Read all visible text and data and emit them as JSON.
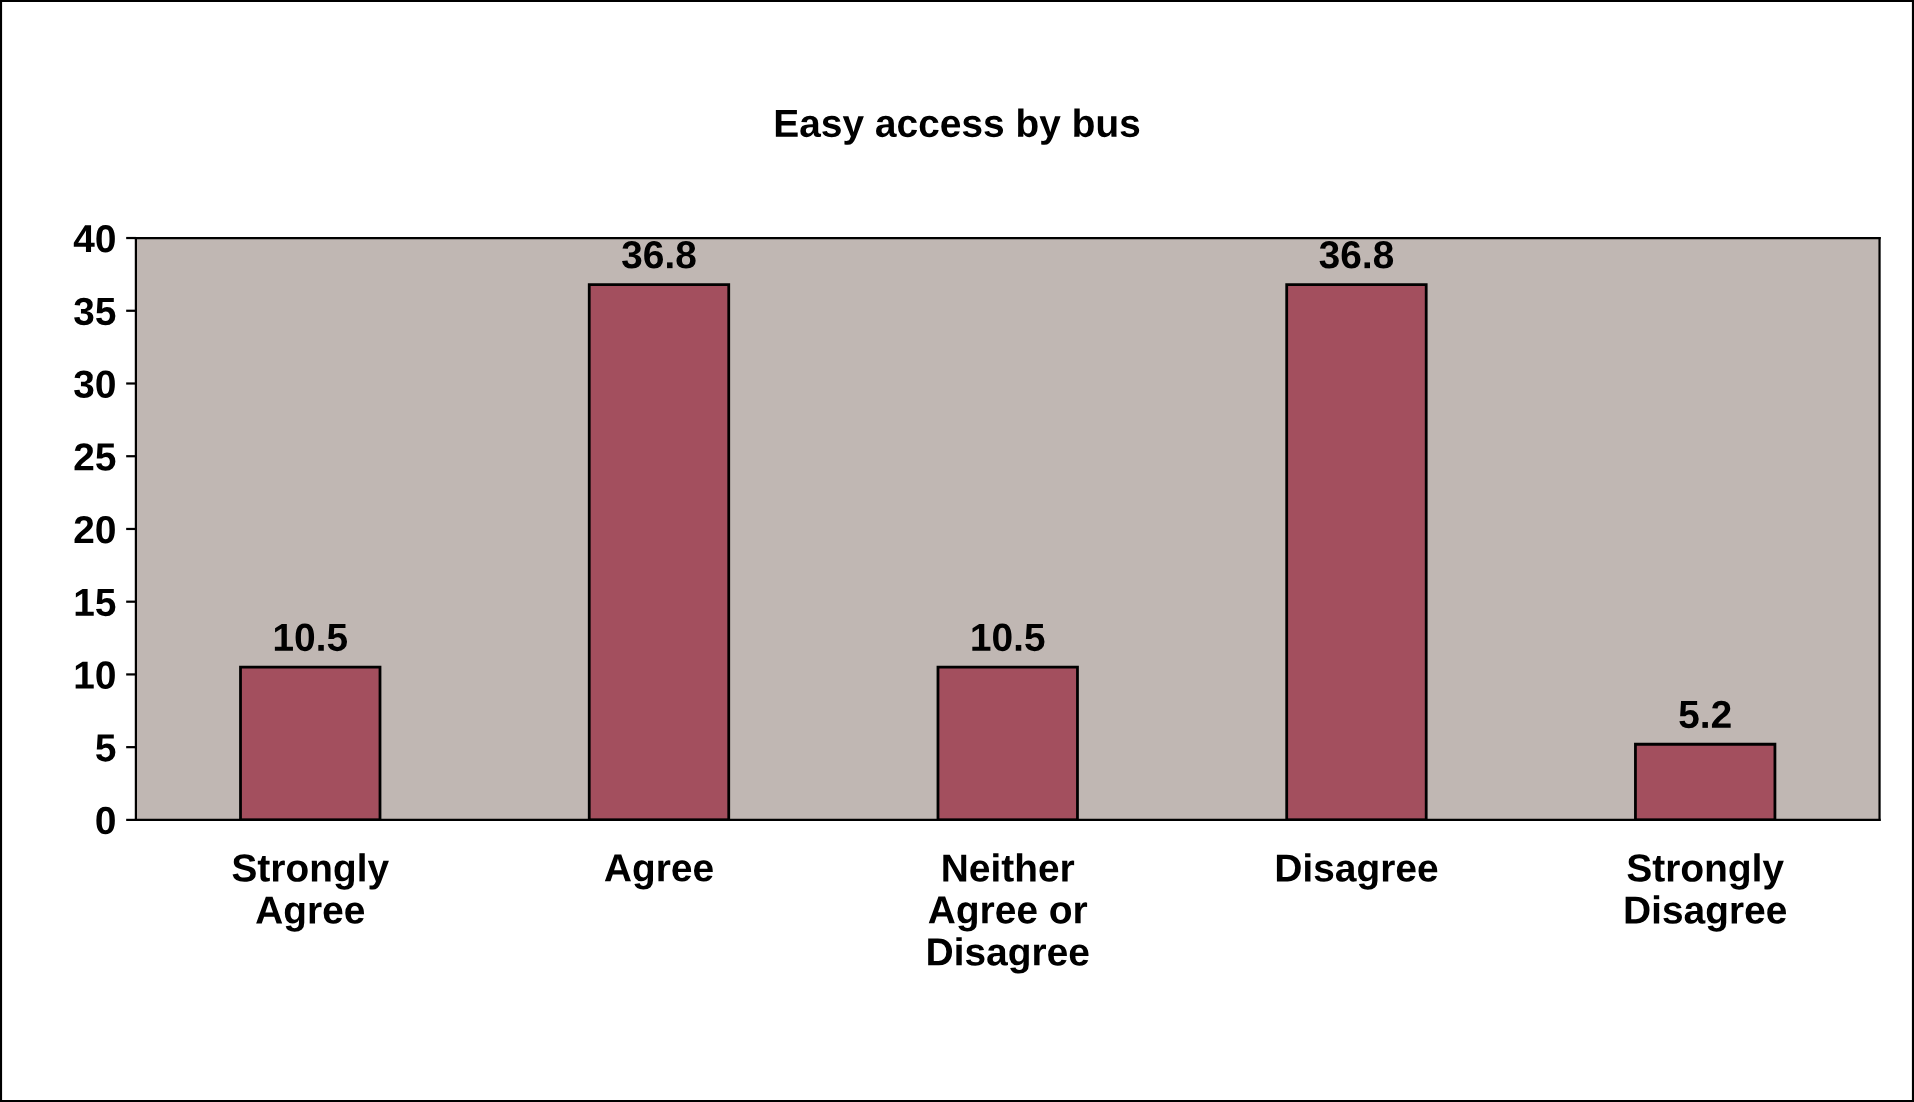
{
  "chart_data": {
    "type": "bar",
    "title": "Easy access by bus",
    "categories": [
      "Strongly\nAgree",
      "Agree",
      "Neither\nAgree or\nDisagree",
      "Disagree",
      "Strongly\nDisagree"
    ],
    "values": [
      10.5,
      36.8,
      10.5,
      36.8,
      5.2
    ],
    "color": "#a34f5e",
    "ylim": [
      0,
      40
    ],
    "yticks": [
      0,
      5,
      10,
      15,
      20,
      25,
      30,
      35,
      40
    ],
    "grid": false,
    "data_labels": true
  }
}
